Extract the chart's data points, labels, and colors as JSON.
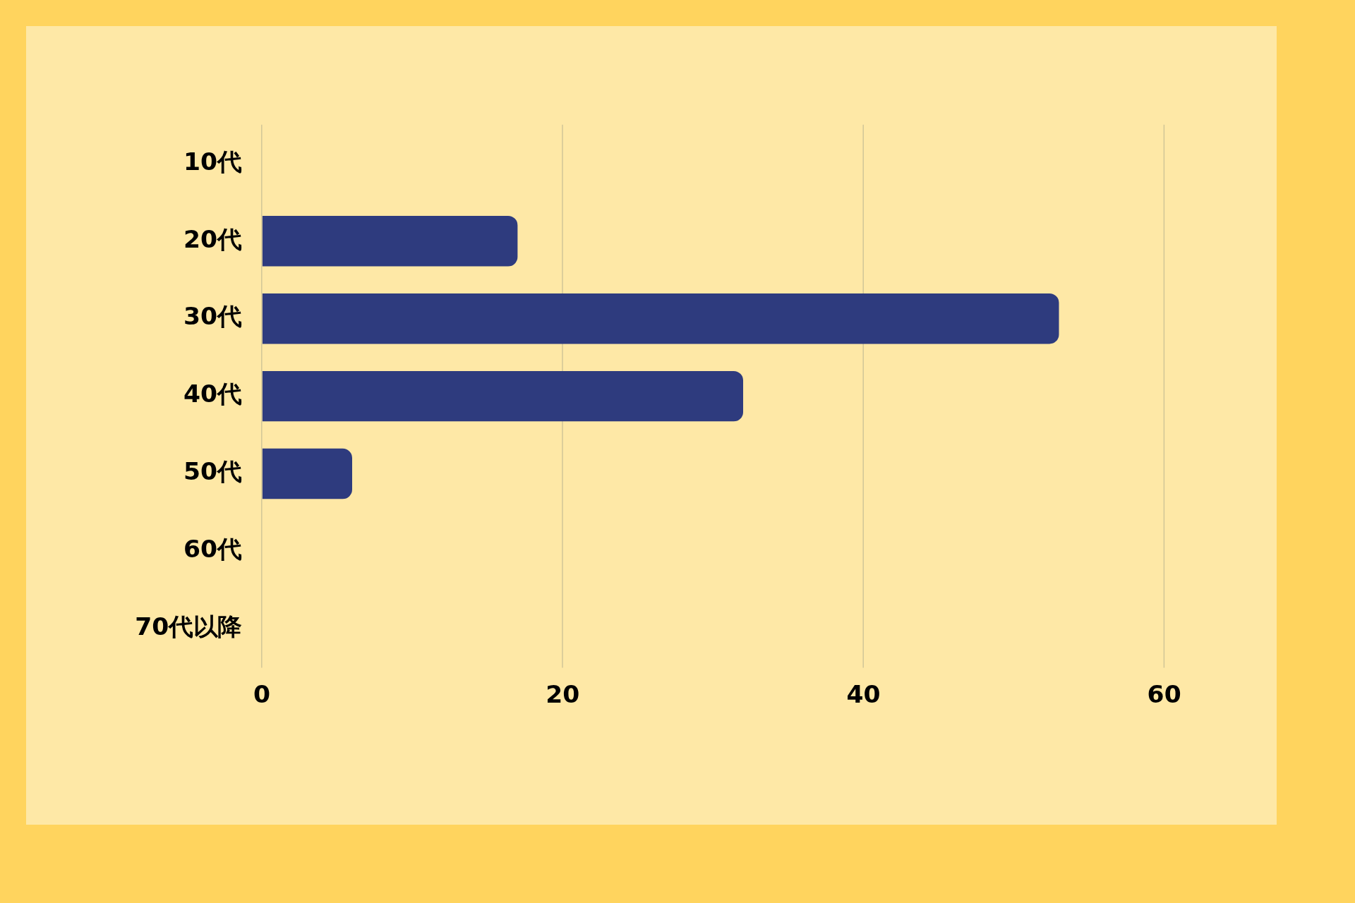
{
  "chart_data": {
    "type": "bar",
    "orientation": "horizontal",
    "categories": [
      "10代",
      "20代",
      "30代",
      "40代",
      "50代",
      "60代",
      "70代以降"
    ],
    "values": [
      0,
      17,
      53,
      32,
      6,
      0,
      0
    ],
    "color": "#2e3b7e",
    "xlim": [
      0,
      60
    ],
    "xticks": [
      0,
      20,
      40,
      60
    ],
    "grid": "x",
    "legend": false
  }
}
